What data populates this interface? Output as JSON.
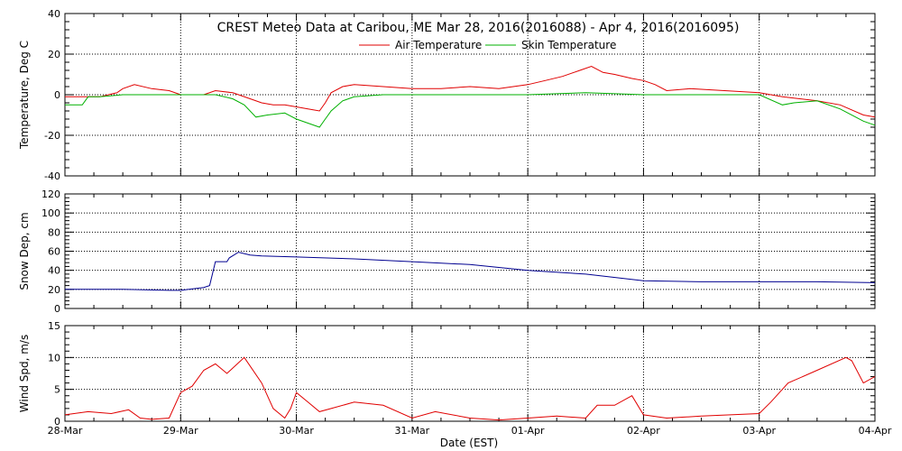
{
  "title": "CREST Meteo Data at Caribou, ME   Mar 28, 2016(2016088) - Apr  4, 2016(2016095)",
  "xlabel": "Date (EST)",
  "x_ticks": [
    "28-Mar",
    "29-Mar",
    "30-Mar",
    "31-Mar",
    "01-Apr",
    "02-Apr",
    "03-Apr",
    "04-Apr"
  ],
  "colors": {
    "air": "#e00000",
    "skin": "#00b000",
    "snow": "#000090",
    "wind": "#e00000"
  },
  "chart_data": [
    {
      "type": "line",
      "ylabel": "Temperature, Deg C",
      "ylim": [
        -40,
        40
      ],
      "y_ticks": [
        -40,
        -20,
        0,
        20,
        40
      ],
      "xlim": [
        0,
        7
      ],
      "grid": true,
      "legend": "top-center",
      "series": [
        {
          "name": "Air Temperature",
          "color_key": "air",
          "x": [
            0,
            0.15,
            0.3,
            0.45,
            0.5,
            0.6,
            0.75,
            0.9,
            1.0,
            1.2,
            1.3,
            1.45,
            1.6,
            1.7,
            1.8,
            1.9,
            2.0,
            2.1,
            2.2,
            2.25,
            2.3,
            2.4,
            2.5,
            2.75,
            3.0,
            3.25,
            3.5,
            3.75,
            4.0,
            4.15,
            4.3,
            4.45,
            4.55,
            4.65,
            4.75,
            4.9,
            5.0,
            5.1,
            5.2,
            5.4,
            5.7,
            6.0,
            6.2,
            6.35,
            6.5,
            6.7,
            6.9,
            7.0
          ],
          "y": [
            -1,
            -1,
            -1,
            1,
            3,
            5,
            3,
            2,
            0,
            0,
            2,
            1,
            -2,
            -4,
            -5,
            -5,
            -6,
            -7,
            -8,
            -4,
            1,
            4,
            5,
            4,
            3,
            3,
            4,
            3,
            5,
            7,
            9,
            12,
            14,
            11,
            10,
            8,
            7,
            5,
            2,
            3,
            2,
            1,
            -1,
            -2,
            -3,
            -5,
            -10,
            -11
          ]
        },
        {
          "name": "Skin Temperature",
          "color_key": "skin",
          "x": [
            0,
            0.15,
            0.2,
            0.3,
            0.5,
            0.75,
            1.0,
            1.3,
            1.45,
            1.55,
            1.65,
            1.75,
            1.9,
            2.0,
            2.1,
            2.2,
            2.25,
            2.3,
            2.4,
            2.5,
            2.75,
            3.0,
            3.5,
            4.0,
            4.5,
            5.0,
            5.5,
            6.0,
            6.2,
            6.3,
            6.5,
            6.7,
            6.9,
            7.0
          ],
          "y": [
            -5,
            -5,
            -1,
            -1,
            0,
            0,
            0,
            0,
            -2,
            -5,
            -11,
            -10,
            -9,
            -12,
            -14,
            -16,
            -12,
            -8,
            -3,
            -1,
            0,
            0,
            0,
            0,
            1,
            0,
            0,
            0,
            -5,
            -4,
            -3,
            -7,
            -13,
            -15
          ]
        }
      ]
    },
    {
      "type": "line",
      "ylabel": "Snow Dep, cm",
      "ylim": [
        0,
        120
      ],
      "y_ticks": [
        0,
        20,
        40,
        60,
        80,
        100,
        120
      ],
      "xlim": [
        0,
        7
      ],
      "grid": true,
      "series": [
        {
          "name": "",
          "color_key": "snow",
          "x": [
            0,
            0.5,
            0.9,
            1.0,
            1.2,
            1.25,
            1.3,
            1.4,
            1.42,
            1.5,
            1.6,
            1.7,
            2.0,
            2.5,
            3.0,
            3.5,
            4.0,
            4.5,
            5.0,
            5.5,
            6.0,
            6.5,
            7.0
          ],
          "y": [
            20,
            20,
            19,
            19,
            22,
            24,
            49,
            49,
            53,
            59,
            56,
            55,
            54,
            52,
            49,
            46,
            40,
            36,
            29,
            28,
            28,
            28,
            27
          ]
        }
      ]
    },
    {
      "type": "line",
      "ylabel": "Wind Spd, m/s",
      "ylim": [
        0,
        15
      ],
      "y_ticks": [
        0,
        5,
        10,
        15
      ],
      "xlim": [
        0,
        7
      ],
      "grid": true,
      "series": [
        {
          "name": "",
          "color_key": "wind",
          "x": [
            0,
            0.2,
            0.4,
            0.55,
            0.65,
            0.75,
            0.9,
            1.0,
            1.1,
            1.2,
            1.3,
            1.4,
            1.55,
            1.7,
            1.8,
            1.9,
            1.95,
            2.0,
            2.1,
            2.2,
            2.3,
            2.5,
            2.75,
            3.0,
            3.2,
            3.5,
            3.75,
            4.0,
            4.25,
            4.5,
            4.6,
            4.75,
            4.9,
            5.0,
            5.2,
            5.5,
            6.0,
            6.1,
            6.25,
            6.5,
            6.75,
            6.8,
            6.9,
            7.0
          ],
          "y": [
            1,
            1.5,
            1.2,
            1.8,
            0.5,
            0.3,
            0.5,
            4.5,
            5.5,
            8,
            9,
            7.5,
            10,
            6,
            2,
            0.5,
            2,
            4.5,
            3,
            1.5,
            2,
            3,
            2.5,
            0.5,
            1.5,
            0.5,
            0.2,
            0.5,
            0.8,
            0.5,
            2.5,
            2.5,
            4,
            1,
            0.5,
            0.8,
            1.2,
            3,
            6,
            8,
            10,
            9.5,
            6,
            7
          ]
        }
      ]
    }
  ]
}
